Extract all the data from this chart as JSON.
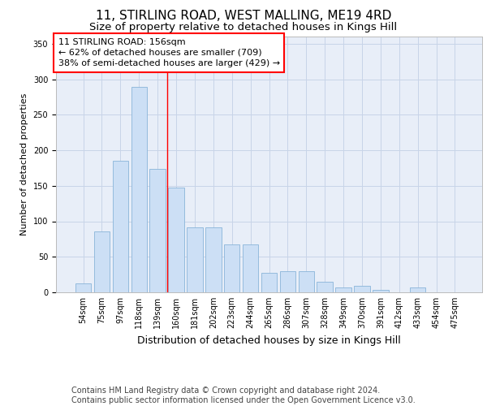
{
  "title": "11, STIRLING ROAD, WEST MALLING, ME19 4RD",
  "subtitle": "Size of property relative to detached houses in Kings Hill",
  "xlabel": "Distribution of detached houses by size in Kings Hill",
  "ylabel": "Number of detached properties",
  "categories": [
    "54sqm",
    "75sqm",
    "97sqm",
    "118sqm",
    "139sqm",
    "160sqm",
    "181sqm",
    "202sqm",
    "223sqm",
    "244sqm",
    "265sqm",
    "286sqm",
    "307sqm",
    "328sqm",
    "349sqm",
    "370sqm",
    "391sqm",
    "412sqm",
    "433sqm",
    "454sqm",
    "475sqm"
  ],
  "values": [
    13,
    86,
    185,
    289,
    174,
    147,
    92,
    92,
    68,
    67,
    27,
    30,
    30,
    15,
    7,
    9,
    3,
    0,
    7,
    0,
    0
  ],
  "bar_color": "#ccdff5",
  "bar_edge_color": "#89b4d9",
  "grid_color": "#c8d4e8",
  "plot_bg_color": "#e8eef8",
  "annotation_box_text": "11 STIRLING ROAD: 156sqm\n← 62% of detached houses are smaller (709)\n38% of semi-detached houses are larger (429) →",
  "footer_text": "Contains HM Land Registry data © Crown copyright and database right 2024.\nContains public sector information licensed under the Open Government Licence v3.0.",
  "ylim": [
    0,
    360
  ],
  "yticks": [
    0,
    50,
    100,
    150,
    200,
    250,
    300,
    350
  ],
  "red_line_x": 4.5,
  "title_fontsize": 11,
  "subtitle_fontsize": 9.5,
  "ylabel_fontsize": 8,
  "xlabel_fontsize": 9,
  "tick_fontsize": 7,
  "annotation_fontsize": 8,
  "footer_fontsize": 7
}
